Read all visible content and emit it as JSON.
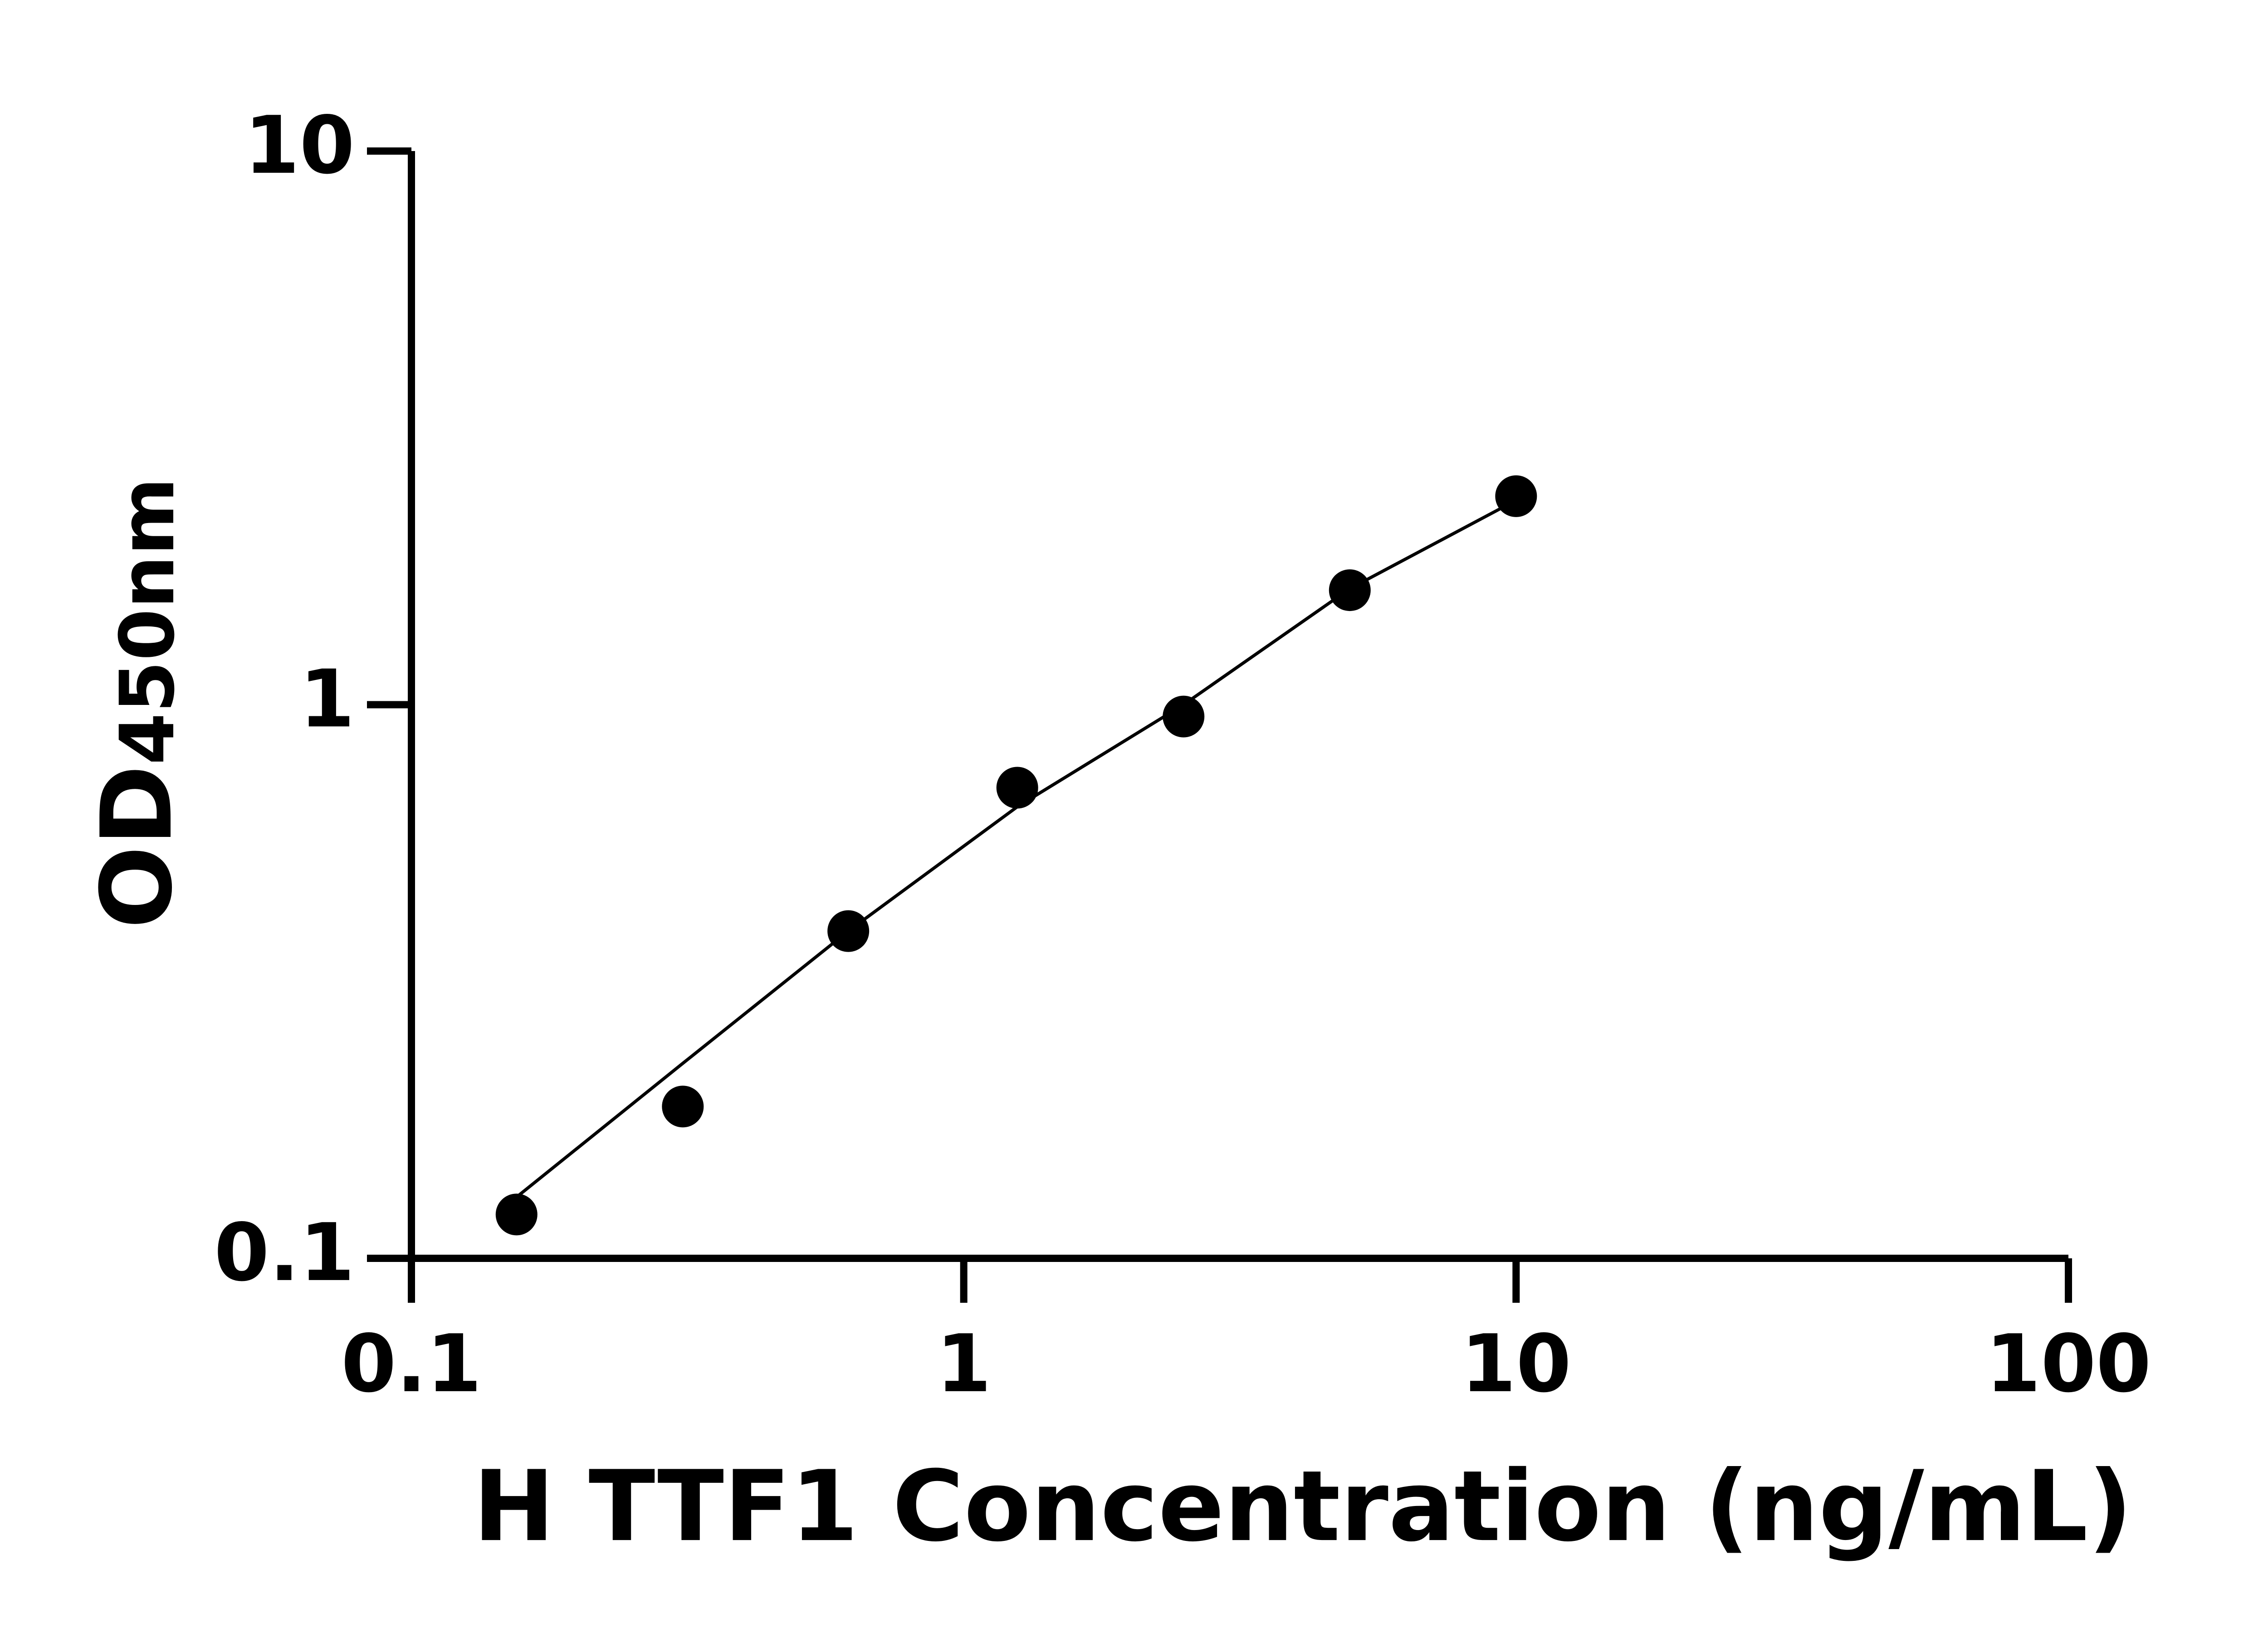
{
  "chart_data": {
    "type": "scatter",
    "ylabel": {
      "main": "OD",
      "subscript": "450nm"
    },
    "xlabel": "H TTF1 Concentration (ng/mL)",
    "x": [
      0.155,
      0.31,
      0.618,
      1.25,
      2.5,
      5,
      10
    ],
    "series": [
      {
        "type": "scatter",
        "color": "#000000",
        "values": [
          0.12,
          0.188,
          0.39,
          0.708,
          0.952,
          1.61,
          2.38
        ]
      },
      {
        "type": "line",
        "color": "#000000",
        "values": [
          0.129,
          0.225,
          0.39,
          0.654,
          1.0,
          1.62,
          2.34
        ]
      }
    ],
    "xlim": [
      0.1,
      100
    ],
    "ylim": [
      0.1,
      10
    ],
    "xticks": [
      0.1,
      1,
      10,
      100
    ],
    "yticks": [
      0.1,
      1,
      10
    ],
    "xscale": "log",
    "yscale": "log",
    "grid": false
  }
}
